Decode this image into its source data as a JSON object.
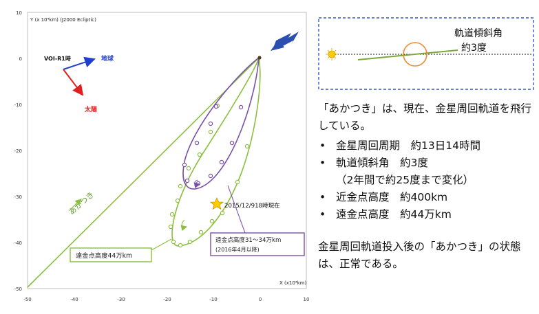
{
  "plot": {
    "y_axis_title": "Y (x 10⁴km) (J2000 Ecliptic)",
    "x_axis_title": "X (x10⁴km)",
    "x_ticks": [
      "-50",
      "-40",
      "-30",
      "-20",
      "-10",
      "0",
      "10"
    ],
    "y_ticks": [
      "10",
      "0",
      "-10",
      "-20",
      "-30",
      "-40",
      "-50"
    ],
    "frame_label": "VOI-R1時",
    "earth_label": "地球",
    "sun_label": "太陽",
    "akatsuki_label": "あかつき",
    "current_label": "2015/12/918時現在",
    "box_green": "遠金点高度44万km",
    "box_purple_line1": "遠金点高度31～34万km",
    "box_purple_line2": "(2016年4月以降)"
  },
  "inset": {
    "label_line1": "軌道傾斜角",
    "label_line2": "約3度"
  },
  "panel": {
    "intro": "「あかつき」は、現在、金星周回軌道を飛行している。",
    "bullet": "•",
    "items": [
      "金星周回周期　約13日14時間",
      "軌道傾斜角　約3度",
      "近金点高度　約400km",
      "遠金点高度　約44万km"
    ],
    "sub_note": "（2年間で約25度まで変化）",
    "conclusion": "金星周回軌道投入後の「あかつき」の状態は、正常である。"
  },
  "colors": {
    "green_orbit": "#8cbf3f",
    "purple_orbit": "#7a4fa8",
    "blue_arrow": "#2a4fb0",
    "earth_blue": "#1f3fd0",
    "sun_red": "#e02020",
    "star": "#ffcc00",
    "inset_border": "#3355cc",
    "venus_orange": "#f08a30"
  }
}
